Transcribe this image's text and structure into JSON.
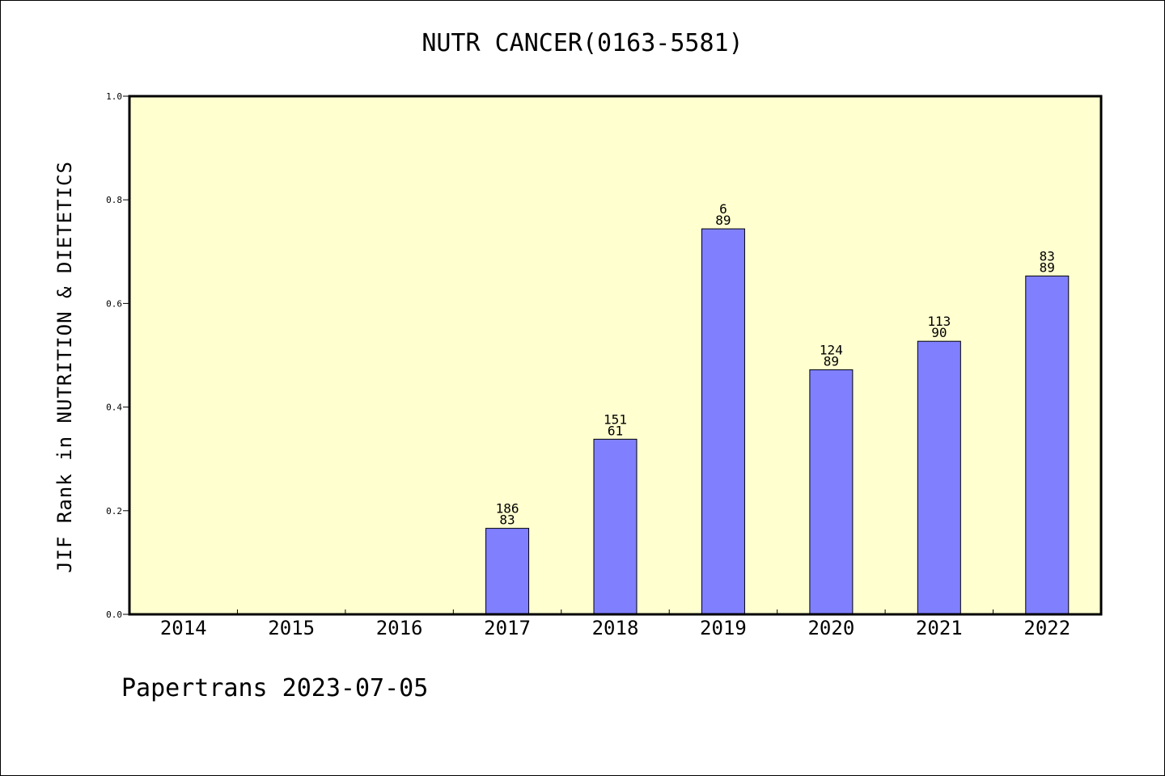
{
  "footer": "Papertrans 2023-07-05",
  "chart_data": {
    "type": "bar",
    "title": "NUTR CANCER(0163-5581)",
    "xlabel": "",
    "ylabel": "JIF Rank in NUTRITION & DIETETICS",
    "ylim": [
      0,
      1.0
    ],
    "yticks": [
      "0.0",
      "0.2",
      "0.4",
      "0.6",
      "0.8",
      "1.0"
    ],
    "categories": [
      "2014",
      "2015",
      "2016",
      "2017",
      "2018",
      "2019",
      "2020",
      "2021",
      "2022"
    ],
    "values": [
      null,
      null,
      null,
      0.166,
      0.338,
      0.744,
      0.472,
      0.527,
      0.653
    ],
    "labels": [
      null,
      null,
      null,
      [
        "186",
        "83"
      ],
      [
        "151",
        "61"
      ],
      [
        "6",
        "89"
      ],
      [
        "124",
        "89"
      ],
      [
        "113",
        "90"
      ],
      [
        "83",
        "89"
      ]
    ],
    "colors": {
      "plot_background": "#ffffd0",
      "bar": "#8080ff",
      "axis": "#000000"
    }
  }
}
